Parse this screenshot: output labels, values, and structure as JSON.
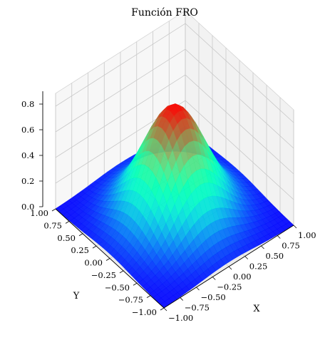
{
  "chart_data": {
    "type": "surface",
    "title": "Función FRO",
    "xlabel": "X",
    "ylabel": "Y",
    "zlabel": "",
    "xlim": [
      -1.0,
      1.0
    ],
    "ylim": [
      -1.0,
      1.0
    ],
    "zlim": [
      0.0,
      0.9
    ],
    "x_ticks": [
      -1.0,
      -0.75,
      -0.5,
      -0.25,
      0.0,
      0.25,
      0.5,
      0.75,
      1.0
    ],
    "x_tick_labels": [
      "−1.00",
      "−0.75",
      "−0.50",
      "−0.25",
      "0.00",
      "0.25",
      "0.50",
      "0.75",
      "1.00"
    ],
    "y_ticks": [
      -1.0,
      -0.75,
      -0.5,
      -0.25,
      0.0,
      0.25,
      0.5,
      0.75,
      1.0
    ],
    "y_tick_labels": [
      "−1.00",
      "−0.75",
      "−0.50",
      "−0.25",
      "0.00",
      "0.25",
      "0.50",
      "0.75",
      "1.00"
    ],
    "z_ticks": [
      0.0,
      0.2,
      0.4,
      0.6,
      0.8
    ],
    "z_tick_labels": [
      "0.0",
      "0.2",
      "0.4",
      "0.6",
      "0.8"
    ],
    "surface_peak": 0.86,
    "colormap": "rainbow",
    "grid": true
  }
}
